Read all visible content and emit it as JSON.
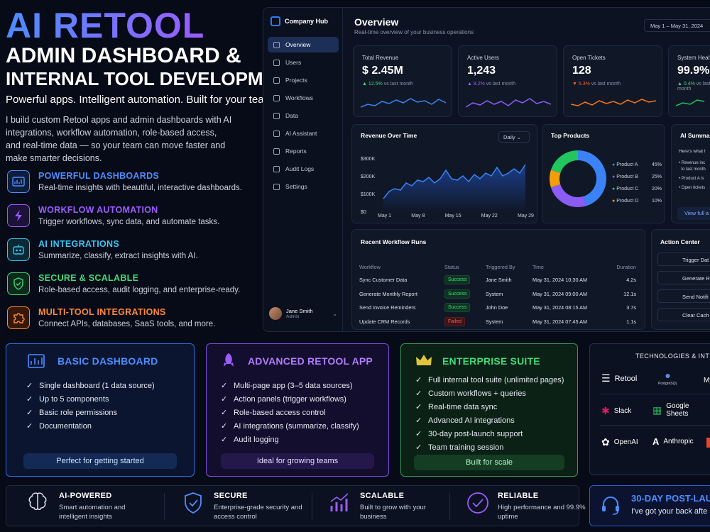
{
  "hero": {
    "title": "AI RETOOL",
    "sub1": "ADMIN DASHBOARD &",
    "sub2": "INTERNAL TOOL DEVELOPMENT",
    "tagline": "Powerful apps. Intelligent automation. Built for your team.",
    "desc": "I build custom Retool apps and admin dashboards with AI integrations, workflow automation, role-based access, and real-time data — so your team can move faster and make smarter decisions."
  },
  "features": [
    {
      "title": "POWERFUL DASHBOARDS",
      "desc": "Real-time insights with beautiful, interactive dashboards.",
      "color": "#4c8dff",
      "icon": "chart-icon"
    },
    {
      "title": "WORKFLOW AUTOMATION",
      "desc": "Trigger workflows, sync data, and automate tasks.",
      "color": "#9b5cff",
      "icon": "lightning-icon"
    },
    {
      "title": "AI INTEGRATIONS",
      "desc": "Summarize, classify, extract insights with AI.",
      "color": "#38c6f4",
      "icon": "robot-icon"
    },
    {
      "title": "SECURE & SCALABLE",
      "desc": "Role-based access, audit logging, and enterprise-ready.",
      "color": "#3ddc78",
      "icon": "shield-icon"
    },
    {
      "title": "MULTI-TOOL INTEGRATIONS",
      "desc": "Connect APIs, databases, SaaS tools, and more.",
      "color": "#ff8a34",
      "icon": "puzzle-icon"
    }
  ],
  "dash": {
    "brand": "Company Hub",
    "nav": [
      "Overview",
      "Users",
      "Projects",
      "Workflows",
      "Data",
      "AI Assistant",
      "Reports",
      "Audit Logs",
      "Settings"
    ],
    "user_name": "Jane Smith",
    "user_role": "Admin",
    "title": "Overview",
    "subtitle": "Real-time overview of your business operations",
    "date": "May 1 – May 31, 2024",
    "kpis": [
      {
        "label": "Total Revenue",
        "value": "$ 2.45M",
        "change": "▲ 12.5%",
        "note": "vs last month",
        "color": "#3ddc78"
      },
      {
        "label": "Active Users",
        "value": "1,243",
        "change": "▲ 8.2%",
        "note": "vs last month",
        "color": "#9b5cff"
      },
      {
        "label": "Open Tickets",
        "value": "128",
        "change": "▼ 5.3%",
        "note": "vs last month",
        "color": "#ff5b3d"
      },
      {
        "label": "System Healt",
        "value": "99.9%",
        "change": "▲ 0.4%",
        "note": "vs last month",
        "color": "#3ddc78"
      }
    ],
    "revenue": {
      "title": "Revenue Over Time",
      "range": "Daily",
      "yticks": [
        "$300K",
        "$200K",
        "$100K",
        "$0"
      ],
      "xticks": [
        "May 1",
        "May 8",
        "May 15",
        "May 22",
        "May 29"
      ]
    },
    "products": {
      "title": "Top Products",
      "items": [
        {
          "name": "Product A",
          "pct": "45%",
          "color": "#3b82f6"
        },
        {
          "name": "Product B",
          "pct": "25%",
          "color": "#8b5cf6"
        },
        {
          "name": "Product C",
          "pct": "20%",
          "color": "#22c55e"
        },
        {
          "name": "Product D",
          "pct": "10%",
          "color": "#f59e0b"
        }
      ]
    },
    "summary": {
      "title": "AI Summary",
      "intro": "Here's what I",
      "b1": "Revenue inc",
      "b1b": "to last month",
      "b2": "Product A is",
      "b3": "Open tickets",
      "link": "View full a"
    },
    "runs": {
      "title": "Recent Workflow Runs",
      "headers": [
        "Workflow",
        "Status",
        "Triggered By",
        "Time",
        "Duration"
      ],
      "rows": [
        {
          "w": "Sync Customer Data",
          "s": "Success",
          "t": "Jane Smith",
          "time": "May 31, 2024 10:30 AM",
          "d": "4.2s"
        },
        {
          "w": "Generate Monthly Report",
          "s": "Success",
          "t": "System",
          "time": "May 31, 2024 09:00 AM",
          "d": "12.1s"
        },
        {
          "w": "Send Invoice Reminders",
          "s": "Success",
          "t": "John Doe",
          "time": "May 31, 2024 08:15 AM",
          "d": "3.7s"
        },
        {
          "w": "Update CRM Records",
          "s": "Failed",
          "t": "System",
          "time": "May 31, 2024 07:45 AM",
          "d": "1.1s"
        }
      ]
    },
    "actions": {
      "title": "Action Center",
      "items": [
        "Trigger Dat",
        "Generate R",
        "Send Notifi",
        "Clear Cach"
      ]
    }
  },
  "plans": [
    {
      "title": "BASIC DASHBOARD",
      "items": [
        "Single dashboard (1 data source)",
        "Up to 5 components",
        "Basic role permissions",
        "Documentation"
      ],
      "footer": "Perfect for getting started",
      "color": "#4c8dff"
    },
    {
      "title": "ADVANCED RETOOL APP",
      "items": [
        "Multi-page app (3–5 data sources)",
        "Action panels (trigger workflows)",
        "Role-based access control",
        "AI integrations (summarize, classify)",
        "Audit logging"
      ],
      "footer": "Ideal for growing teams",
      "color": "#9b5cff"
    },
    {
      "title": "ENTERPRISE SUITE",
      "items": [
        "Full internal tool suite (unlimited pages)",
        "Custom workflows + queries",
        "Real-time data sync",
        "Advanced AI integrations",
        "30-day post-launch support",
        "Team training session"
      ],
      "footer": "Built for scale",
      "color": "#3ddc78"
    }
  ],
  "tech": {
    "title": "TECHNOLOGIES & INTE",
    "items": [
      "Retool",
      "PostgreSQL",
      "My",
      "Slack",
      "Google Sheets",
      "OpenAI",
      "Anthropic"
    ]
  },
  "bottom": [
    {
      "title": "AI-POWERED",
      "desc": "Smart automation and intelligent insights"
    },
    {
      "title": "SECURE",
      "desc": "Enterprise-grade security and access control"
    },
    {
      "title": "SCALABLE",
      "desc": "Built to grow with your business"
    },
    {
      "title": "RELIABLE",
      "desc": "High performance and 99.9% uptime"
    }
  ],
  "support": {
    "title": "30-DAY POST-LAU",
    "desc": "I've got your back afte"
  }
}
